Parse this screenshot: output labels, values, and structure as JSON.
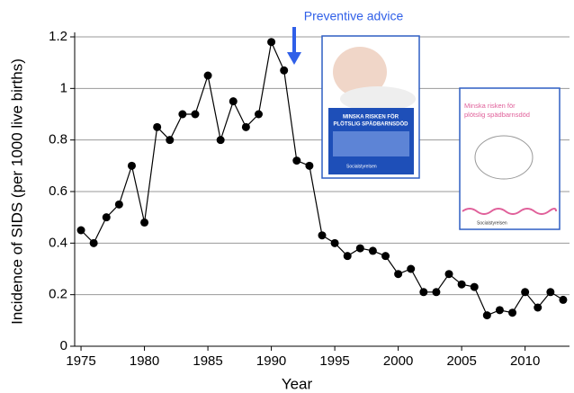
{
  "chart_data": {
    "type": "line",
    "annotation": "Preventive advice",
    "x_label": "Year",
    "y_label": "Incidence of SIDS (per 1000 live births)",
    "x": [
      1975,
      1976,
      1977,
      1978,
      1979,
      1980,
      1981,
      1982,
      1983,
      1984,
      1985,
      1986,
      1987,
      1988,
      1989,
      1990,
      1991,
      1992,
      1993,
      1994,
      1995,
      1996,
      1997,
      1998,
      1999,
      2000,
      2001,
      2002,
      2003,
      2004,
      2005,
      2006,
      2007,
      2008,
      2009,
      2010,
      2011,
      2012,
      2013
    ],
    "values": [
      0.45,
      0.4,
      0.5,
      0.55,
      0.7,
      0.48,
      0.85,
      0.8,
      0.9,
      0.9,
      1.05,
      0.8,
      0.95,
      0.85,
      0.9,
      1.18,
      1.07,
      0.72,
      0.7,
      0.43,
      0.4,
      0.35,
      0.38,
      0.37,
      0.35,
      0.28,
      0.3,
      0.21,
      0.21,
      0.28,
      0.24,
      0.23,
      0.12,
      0.14,
      0.13,
      0.21,
      0.15,
      0.21,
      0.18
    ],
    "color": "#000000",
    "xlim": [
      1974.5,
      2013.5
    ],
    "xticks": [
      1975,
      1980,
      1985,
      1990,
      1995,
      2000,
      2005,
      2010
    ],
    "ylim": [
      0,
      1.2
    ],
    "yticks": [
      0,
      0.2,
      0.4,
      0.6,
      0.8,
      1,
      1.2
    ],
    "grid": true
  },
  "brochures": [
    {
      "title_lines": [
        "MINSKA RISKEN FÖR",
        "PLÖTSLIG SPÄDBARNSDÖD"
      ],
      "publisher": "Socialstyrelsen"
    },
    {
      "title_lines": [
        "Minska risken för",
        "plötslig spädbarnsdöd"
      ],
      "publisher": "Socialstyrelsen"
    }
  ]
}
